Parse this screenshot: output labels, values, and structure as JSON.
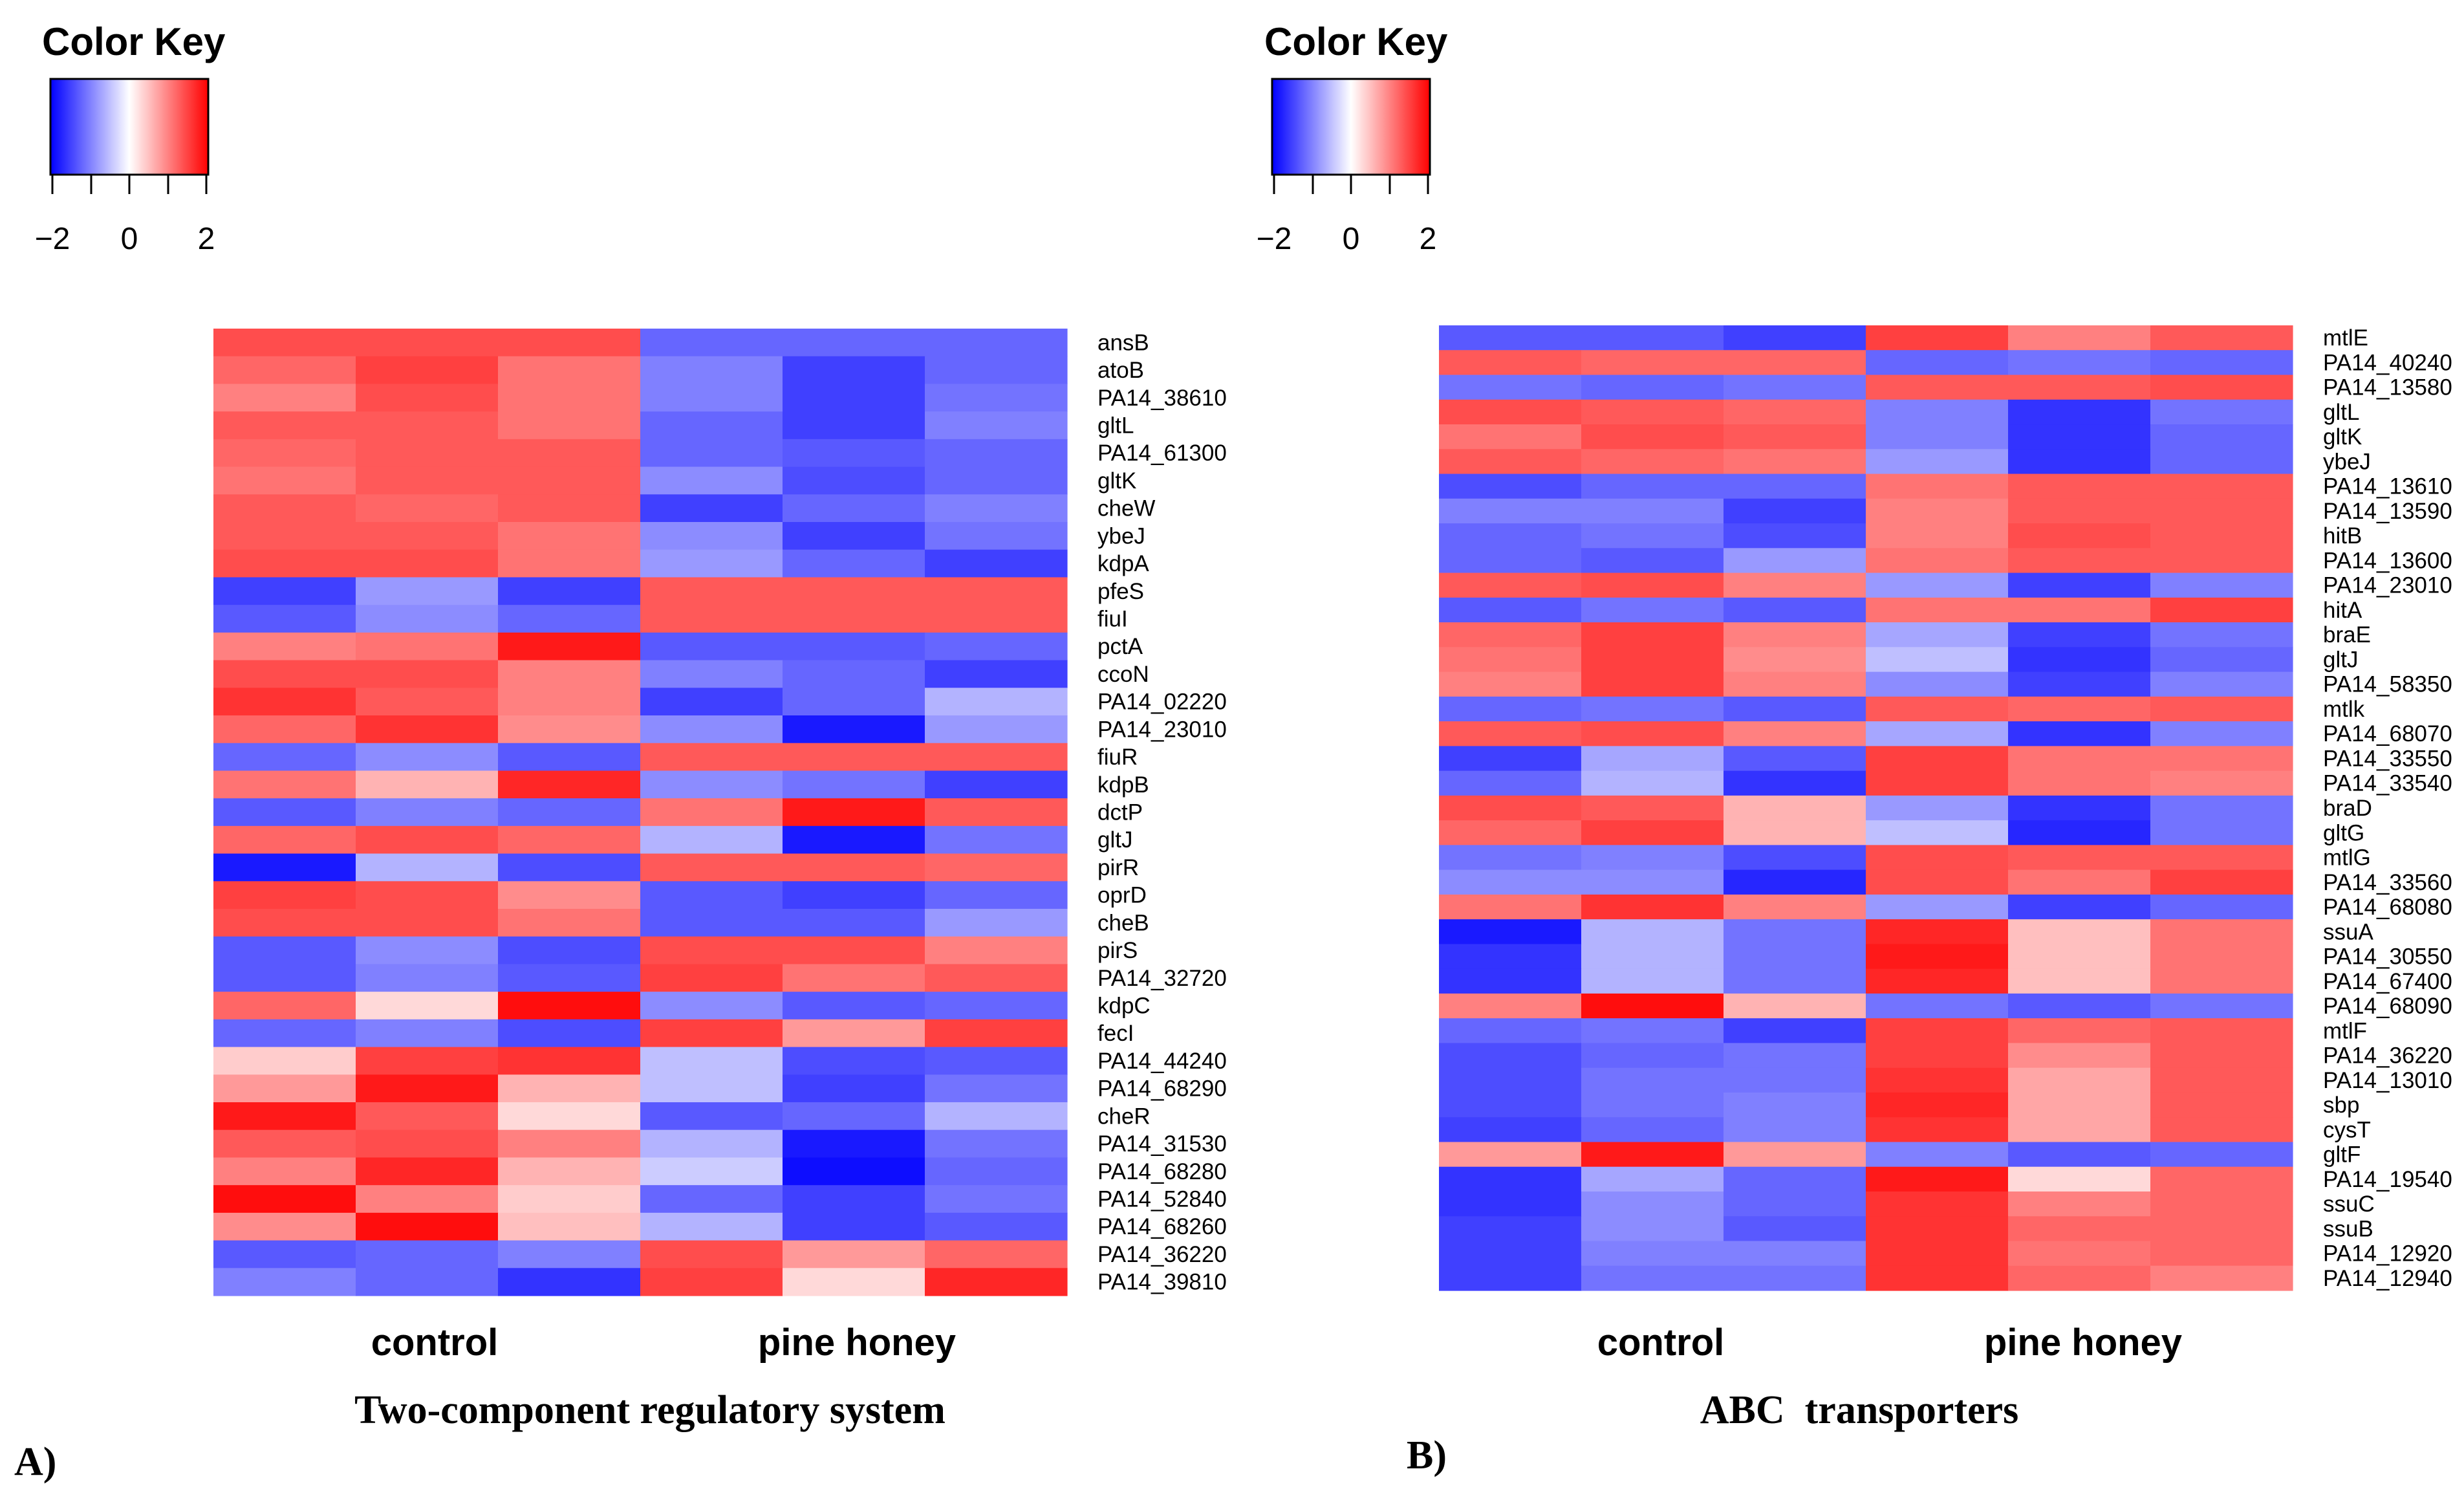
{
  "chart_data": [
    {
      "type": "heatmap",
      "panel_label": "A)",
      "title": "Two-component regulatory system",
      "color_key": {
        "title": "Color Key",
        "ticks": [
          "−2",
          "0",
          "2"
        ],
        "range": [
          -2,
          2
        ],
        "low_color": "#0000ff",
        "mid_color": "#ffffff",
        "high_color": "#ff0000"
      },
      "groups": [
        {
          "label": "control",
          "n_columns": 3
        },
        {
          "label": "pine honey",
          "n_columns": 3
        }
      ],
      "rows": [
        "ansB",
        "atoB",
        "PA14_38610",
        "gltL",
        "PA14_61300",
        "gltK",
        "cheW",
        "ybeJ",
        "kdpA",
        "pfeS",
        "fiuI",
        "pctA",
        "ccoN",
        "PA14_02220",
        "PA14_23010",
        "fiuR",
        "kdpB",
        "dctP",
        "gltJ",
        "pirR",
        "oprD",
        "cheB",
        "pirS",
        "PA14_32720",
        "kdpC",
        "fecI",
        "PA14_44240",
        "PA14_68290",
        "cheR",
        "PA14_31530",
        "PA14_68280",
        "PA14_52840",
        "PA14_68260",
        "PA14_36220",
        "PA14_39810"
      ],
      "values": [
        [
          1.4,
          1.4,
          1.4,
          -1.2,
          -1.2,
          -1.2
        ],
        [
          1.2,
          1.5,
          1.1,
          -1.0,
          -1.5,
          -1.2
        ],
        [
          1.0,
          1.4,
          1.1,
          -1.0,
          -1.5,
          -1.1
        ],
        [
          1.3,
          1.3,
          1.1,
          -1.2,
          -1.5,
          -1.0
        ],
        [
          1.2,
          1.3,
          1.3,
          -1.2,
          -1.3,
          -1.2
        ],
        [
          1.1,
          1.3,
          1.3,
          -0.9,
          -1.4,
          -1.2
        ],
        [
          1.3,
          1.2,
          1.3,
          -1.5,
          -1.2,
          -1.0
        ],
        [
          1.3,
          1.3,
          1.1,
          -0.9,
          -1.5,
          -1.1
        ],
        [
          1.4,
          1.4,
          1.1,
          -0.8,
          -1.2,
          -1.5
        ],
        [
          -1.5,
          -0.8,
          -1.5,
          1.3,
          1.3,
          1.3
        ],
        [
          -1.3,
          -0.9,
          -1.2,
          1.3,
          1.3,
          1.3
        ],
        [
          1.0,
          1.1,
          1.8,
          -1.3,
          -1.3,
          -1.2
        ],
        [
          1.4,
          1.4,
          1.0,
          -1.0,
          -1.2,
          -1.5
        ],
        [
          1.6,
          1.3,
          1.0,
          -1.5,
          -1.2,
          -0.6
        ],
        [
          1.2,
          1.6,
          0.9,
          -0.9,
          -1.8,
          -0.8
        ],
        [
          -1.2,
          -0.9,
          -1.3,
          1.3,
          1.3,
          1.3
        ],
        [
          1.1,
          0.6,
          1.7,
          -0.9,
          -1.1,
          -1.5
        ],
        [
          -1.3,
          -1.0,
          -1.2,
          1.1,
          1.8,
          1.3
        ],
        [
          1.2,
          1.4,
          1.2,
          -0.6,
          -1.8,
          -1.1
        ],
        [
          -1.8,
          -0.6,
          -1.4,
          1.3,
          1.3,
          1.2
        ],
        [
          1.5,
          1.4,
          0.9,
          -1.3,
          -1.5,
          -1.2
        ],
        [
          1.4,
          1.4,
          1.1,
          -1.3,
          -1.3,
          -0.8
        ],
        [
          -1.3,
          -0.9,
          -1.4,
          1.4,
          1.4,
          1.0
        ],
        [
          -1.3,
          -1.0,
          -1.3,
          1.5,
          1.1,
          1.3
        ],
        [
          1.2,
          0.3,
          1.9,
          -0.9,
          -1.3,
          -1.2
        ],
        [
          -1.2,
          -1.0,
          -1.4,
          1.5,
          0.8,
          1.5
        ],
        [
          0.4,
          1.5,
          1.6,
          -0.5,
          -1.4,
          -1.3
        ],
        [
          0.8,
          1.8,
          0.6,
          -0.5,
          -1.5,
          -1.1
        ],
        [
          1.8,
          1.3,
          0.3,
          -1.3,
          -1.2,
          -0.6
        ],
        [
          1.3,
          1.4,
          1.0,
          -0.6,
          -1.8,
          -1.1
        ],
        [
          1.0,
          1.7,
          0.6,
          -0.4,
          -1.9,
          -1.2
        ],
        [
          1.9,
          1.0,
          0.4,
          -1.2,
          -1.5,
          -1.1
        ],
        [
          0.9,
          1.9,
          0.5,
          -0.6,
          -1.5,
          -1.3
        ],
        [
          -1.3,
          -1.2,
          -1.0,
          1.4,
          0.8,
          1.2
        ],
        [
          -1.0,
          -1.2,
          -1.6,
          1.5,
          0.3,
          1.7
        ]
      ]
    },
    {
      "type": "heatmap",
      "panel_label": "B)",
      "title": "ABC  transporters",
      "color_key": {
        "title": "Color Key",
        "ticks": [
          "−2",
          "0",
          "2"
        ],
        "range": [
          -2,
          2
        ],
        "low_color": "#0000ff",
        "mid_color": "#ffffff",
        "high_color": "#ff0000"
      },
      "groups": [
        {
          "label": "control",
          "n_columns": 3
        },
        {
          "label": "pine honey",
          "n_columns": 3
        }
      ],
      "rows": [
        "mtlE",
        "PA14_40240",
        "PA14_13580",
        "gltL",
        "gltK",
        "ybeJ",
        "PA14_13610",
        "PA14_13590",
        "hitB",
        "PA14_13600",
        "PA14_23010",
        "hitA",
        "braE",
        "gltJ",
        "PA14_58350",
        "mtlk",
        "PA14_68070",
        "PA14_33550",
        "PA14_33540",
        "braD",
        "gltG",
        "mtlG",
        "PA14_33560",
        "PA14_68080",
        "ssuA",
        "PA14_30550",
        "PA14_67400",
        "PA14_68090",
        "mtlF",
        "PA14_36220",
        "PA14_13010",
        "sbp",
        "cysT",
        "gltF",
        "PA14_19540",
        "ssuC",
        "ssuB",
        "PA14_12920",
        "PA14_12940"
      ],
      "values": [
        [
          -1.3,
          -1.3,
          -1.5,
          1.5,
          1.0,
          1.3
        ],
        [
          1.3,
          1.2,
          1.2,
          -1.2,
          -1.1,
          -1.2
        ],
        [
          -1.1,
          -1.2,
          -1.1,
          1.3,
          1.3,
          1.4
        ],
        [
          1.4,
          1.3,
          1.2,
          -1.0,
          -1.6,
          -1.1
        ],
        [
          1.1,
          1.4,
          1.3,
          -1.0,
          -1.6,
          -1.2
        ],
        [
          1.3,
          1.2,
          1.1,
          -0.8,
          -1.6,
          -1.2
        ],
        [
          -1.4,
          -1.2,
          -1.2,
          1.1,
          1.3,
          1.3
        ],
        [
          -1.0,
          -1.0,
          -1.5,
          1.0,
          1.3,
          1.3
        ],
        [
          -1.2,
          -1.1,
          -1.4,
          1.0,
          1.4,
          1.3
        ],
        [
          -1.2,
          -1.3,
          -0.8,
          1.1,
          1.3,
          1.3
        ],
        [
          1.3,
          1.4,
          1.0,
          -0.8,
          -1.5,
          -1.0
        ],
        [
          -1.3,
          -1.1,
          -1.3,
          1.1,
          1.1,
          1.5
        ],
        [
          1.2,
          1.5,
          1.0,
          -0.7,
          -1.5,
          -1.1
        ],
        [
          1.1,
          1.5,
          0.9,
          -0.5,
          -1.6,
          -1.2
        ],
        [
          1.0,
          1.5,
          1.0,
          -0.9,
          -1.5,
          -1.0
        ],
        [
          -1.2,
          -1.1,
          -1.3,
          1.3,
          1.2,
          1.3
        ],
        [
          1.3,
          1.4,
          1.0,
          -0.7,
          -1.6,
          -1.0
        ],
        [
          -1.5,
          -0.7,
          -1.3,
          1.5,
          1.1,
          1.1
        ],
        [
          -1.2,
          -0.6,
          -1.6,
          1.5,
          1.1,
          1.0
        ],
        [
          1.4,
          1.3,
          0.6,
          -0.8,
          -1.6,
          -1.1
        ],
        [
          1.2,
          1.5,
          0.6,
          -0.5,
          -1.7,
          -1.1
        ],
        [
          -1.1,
          -1.0,
          -1.4,
          1.4,
          1.3,
          1.3
        ],
        [
          -0.9,
          -0.9,
          -1.7,
          1.4,
          1.1,
          1.5
        ],
        [
          1.1,
          1.6,
          1.0,
          -0.8,
          -1.5,
          -1.2
        ],
        [
          -1.8,
          -0.6,
          -1.1,
          1.7,
          0.5,
          1.1
        ],
        [
          -1.6,
          -0.6,
          -1.1,
          1.8,
          0.5,
          1.1
        ],
        [
          -1.6,
          -0.6,
          -1.1,
          1.7,
          0.5,
          1.1
        ],
        [
          1.0,
          1.9,
          0.6,
          -1.1,
          -1.3,
          -1.1
        ],
        [
          -1.2,
          -1.1,
          -1.5,
          1.5,
          1.2,
          1.3
        ],
        [
          -1.4,
          -1.2,
          -1.1,
          1.5,
          0.9,
          1.3
        ],
        [
          -1.4,
          -1.1,
          -1.1,
          1.6,
          0.7,
          1.3
        ],
        [
          -1.4,
          -1.1,
          -1.0,
          1.7,
          0.7,
          1.3
        ],
        [
          -1.5,
          -1.2,
          -1.0,
          1.6,
          0.7,
          1.3
        ],
        [
          0.8,
          1.8,
          0.8,
          -1.0,
          -1.3,
          -1.2
        ],
        [
          -1.6,
          -0.7,
          -1.2,
          1.8,
          0.3,
          1.2
        ],
        [
          -1.6,
          -0.9,
          -1.2,
          1.6,
          1.0,
          1.2
        ],
        [
          -1.5,
          -0.9,
          -1.3,
          1.6,
          1.2,
          1.2
        ],
        [
          -1.5,
          -1.0,
          -1.0,
          1.6,
          1.1,
          1.2
        ],
        [
          -1.5,
          -1.1,
          -1.1,
          1.6,
          1.2,
          1.0
        ]
      ]
    }
  ]
}
